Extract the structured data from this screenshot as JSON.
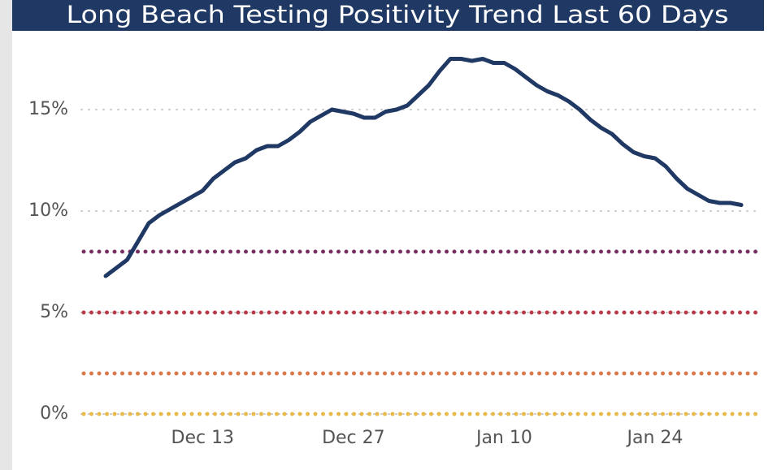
{
  "chart_data": {
    "type": "line",
    "title": "Long Beach Testing Positivity Trend Last 60 Days",
    "x": [
      "Dec 4",
      "Dec 5",
      "Dec 6",
      "Dec 7",
      "Dec 8",
      "Dec 9",
      "Dec 10",
      "Dec 11",
      "Dec 12",
      "Dec 13",
      "Dec 14",
      "Dec 15",
      "Dec 16",
      "Dec 17",
      "Dec 18",
      "Dec 19",
      "Dec 20",
      "Dec 21",
      "Dec 22",
      "Dec 23",
      "Dec 24",
      "Dec 25",
      "Dec 26",
      "Dec 27",
      "Dec 28",
      "Dec 29",
      "Dec 30",
      "Dec 31",
      "Jan 1",
      "Jan 2",
      "Jan 3",
      "Jan 4",
      "Jan 5",
      "Jan 6",
      "Jan 7",
      "Jan 8",
      "Jan 9",
      "Jan 10",
      "Jan 11",
      "Jan 12",
      "Jan 13",
      "Jan 14",
      "Jan 15",
      "Jan 16",
      "Jan 17",
      "Jan 18",
      "Jan 19",
      "Jan 20",
      "Jan 21",
      "Jan 22",
      "Jan 23",
      "Jan 24",
      "Jan 25",
      "Jan 26",
      "Jan 27",
      "Jan 28",
      "Jan 29",
      "Jan 30",
      "Jan 31",
      "Feb 1"
    ],
    "series": [
      {
        "color": "#1f3864",
        "values": [
          6.8,
          7.2,
          7.6,
          8.5,
          9.4,
          9.8,
          10.1,
          10.4,
          10.7,
          11.0,
          11.6,
          12.0,
          12.4,
          12.6,
          13.0,
          13.2,
          13.2,
          13.5,
          13.9,
          14.4,
          14.7,
          15.0,
          14.9,
          14.8,
          14.6,
          14.6,
          14.9,
          15.0,
          15.2,
          15.7,
          16.2,
          16.9,
          17.5,
          17.5,
          17.4,
          17.5,
          17.3,
          17.3,
          17.0,
          16.6,
          16.2,
          15.9,
          15.7,
          15.4,
          15.0,
          14.5,
          14.1,
          13.8,
          13.3,
          12.9,
          12.7,
          12.6,
          12.2,
          11.6,
          11.1,
          10.8,
          10.5,
          10.4,
          10.4,
          10.3
        ]
      }
    ],
    "xticks": [
      "Dec 13",
      "Dec 27",
      "Jan 10",
      "Jan 24"
    ],
    "ylim": [
      0,
      18
    ],
    "yticks": [
      {
        "value": 0,
        "label": "0%"
      },
      {
        "value": 5,
        "label": "5%"
      },
      {
        "value": 10,
        "label": "10%"
      },
      {
        "value": 15,
        "label": "15%"
      }
    ],
    "grid": true,
    "reference_lines": [
      {
        "value": 8,
        "color": "#7a2f63"
      },
      {
        "value": 5,
        "color": "#b83a4b"
      },
      {
        "value": 2,
        "color": "#d9784a"
      },
      {
        "value": 0,
        "color": "#e8b94a"
      }
    ]
  }
}
